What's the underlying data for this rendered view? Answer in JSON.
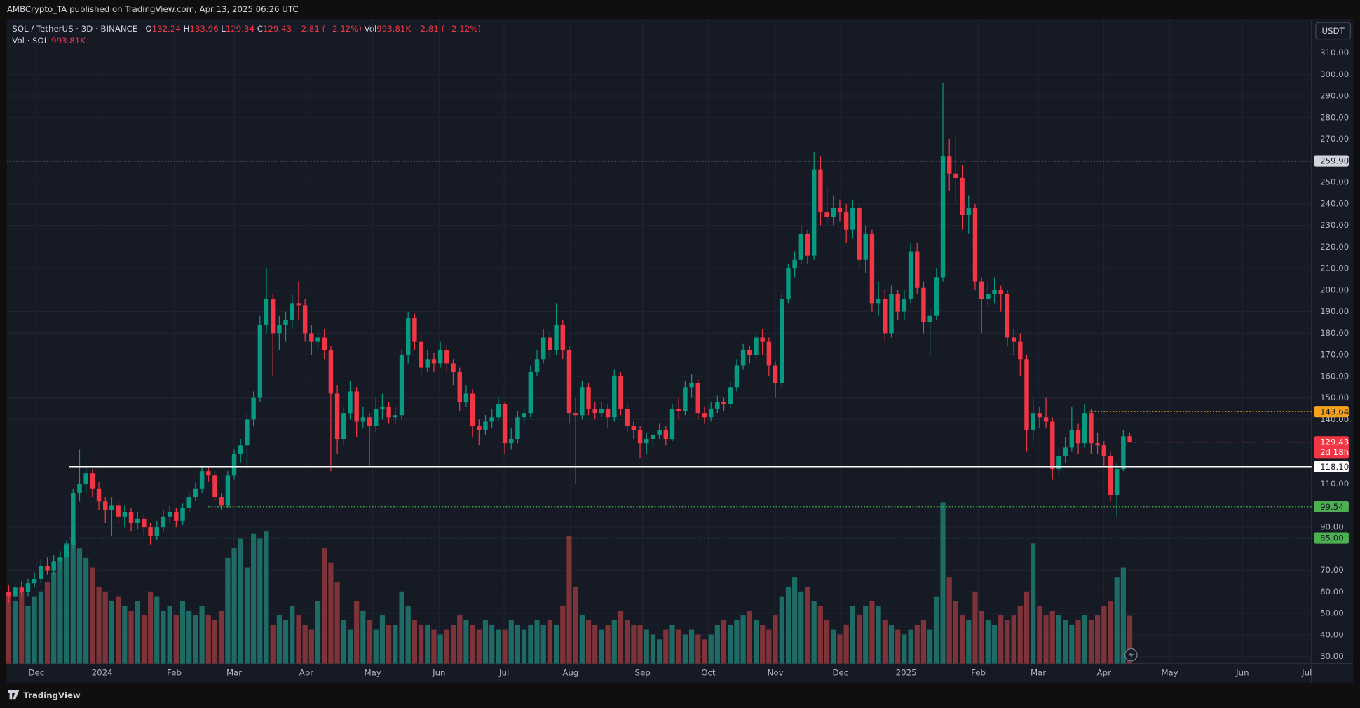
{
  "header": {
    "publisher": "AMBCrypto_TA published on TradingView.com, Apr 13, 2025 06:26 UTC"
  },
  "legend": {
    "symbol": "SOL / TetherUS · 3D · BINANCE",
    "ohlc": [
      {
        "k": "O",
        "v": "132.24"
      },
      {
        "k": "H",
        "v": "133.96"
      },
      {
        "k": "L",
        "v": "129.34"
      },
      {
        "k": "C",
        "v": "129.43"
      }
    ],
    "change": "−2.81 (−2.12%)",
    "vol_key": "Vol",
    "vol_value": "993.81K",
    "vol_change": "−2.81 (−2.12%)",
    "vol_line_key": "Vol · SOL",
    "vol_line_value": "993.81K"
  },
  "footer": {
    "brand": "TradingView"
  },
  "chart_data": {
    "type": "candlestick",
    "currency": "USDT",
    "xlim": [
      -0.27,
      202.2
    ],
    "xticks": [
      {
        "value": 4.3,
        "label": "Dec"
      },
      {
        "value": 14.5,
        "label": "2024"
      },
      {
        "value": 25.7,
        "label": "Feb"
      },
      {
        "value": 35.0,
        "label": "Mar"
      },
      {
        "value": 46.2,
        "label": "Apr"
      },
      {
        "value": 56.5,
        "label": "May"
      },
      {
        "value": 66.8,
        "label": "Jun"
      },
      {
        "value": 76.9,
        "label": "Jul"
      },
      {
        "value": 87.2,
        "label": "Aug"
      },
      {
        "value": 98.4,
        "label": "Sep"
      },
      {
        "value": 108.6,
        "label": "Oct"
      },
      {
        "value": 119.0,
        "label": "Nov"
      },
      {
        "value": 129.1,
        "label": "Dec"
      },
      {
        "value": 139.3,
        "label": "2025"
      },
      {
        "value": 150.5,
        "label": "Feb"
      },
      {
        "value": 159.8,
        "label": "Mar"
      },
      {
        "value": 170.0,
        "label": "Apr"
      },
      {
        "value": 180.2,
        "label": "May"
      },
      {
        "value": 191.5,
        "label": "Jun"
      },
      {
        "value": 201.5,
        "label": "Jul"
      }
    ],
    "ylim": [
      26.8,
      325.7
    ],
    "yticks": [
      {
        "value": 30,
        "label": "30.00"
      },
      {
        "value": 40,
        "label": "40.00"
      },
      {
        "value": 50,
        "label": "50.00"
      },
      {
        "value": 60,
        "label": "60.00"
      },
      {
        "value": 70,
        "label": "70.00"
      },
      {
        "value": 90,
        "label": "90.00"
      },
      {
        "value": 110,
        "label": "110.00"
      },
      {
        "value": 140,
        "label": "140.00"
      },
      {
        "value": 150,
        "label": "150.00"
      },
      {
        "value": 160,
        "label": "160.00"
      },
      {
        "value": 170,
        "label": "170.00"
      },
      {
        "value": 180,
        "label": "180.00"
      },
      {
        "value": 190,
        "label": "190.00"
      },
      {
        "value": 200,
        "label": "200.00"
      },
      {
        "value": 210,
        "label": "210.00"
      },
      {
        "value": 220,
        "label": "220.00"
      },
      {
        "value": 230,
        "label": "230.00"
      },
      {
        "value": 240,
        "label": "240.00"
      },
      {
        "value": 250,
        "label": "250.00"
      },
      {
        "value": 260,
        "label": "260.00"
      },
      {
        "value": 270,
        "label": "270.00"
      },
      {
        "value": 280,
        "label": "280.00"
      },
      {
        "value": 290,
        "label": "290.00"
      },
      {
        "value": 300,
        "label": "300.00"
      },
      {
        "value": 310,
        "label": "310.00"
      }
    ],
    "grid": true,
    "up_color": "#089981",
    "down_color": "#f23645",
    "vol_up_color": "#1d6b64",
    "vol_down_color": "#7e3338",
    "candles": [
      [
        60,
        63,
        55,
        58
      ],
      [
        58,
        64,
        56,
        62
      ],
      [
        62,
        65,
        58,
        60
      ],
      [
        60,
        66,
        58,
        64
      ],
      [
        64,
        69,
        62,
        66
      ],
      [
        66,
        75,
        64,
        72
      ],
      [
        72,
        76,
        68,
        70
      ],
      [
        70,
        77,
        68,
        74
      ],
      [
        74,
        79,
        72,
        76
      ],
      [
        76,
        84,
        74,
        82
      ],
      [
        82,
        108,
        80,
        106
      ],
      [
        106,
        126,
        102,
        110
      ],
      [
        110,
        118,
        106,
        115
      ],
      [
        115,
        117,
        104,
        108
      ],
      [
        108,
        111,
        98,
        102
      ],
      [
        102,
        104,
        92,
        98
      ],
      [
        98,
        104,
        86,
        100
      ],
      [
        100,
        102,
        92,
        95
      ],
      [
        95,
        100,
        90,
        97
      ],
      [
        97,
        99,
        88,
        92
      ],
      [
        92,
        97,
        89,
        94
      ],
      [
        94,
        96,
        86,
        90
      ],
      [
        90,
        92,
        82,
        86
      ],
      [
        86,
        93,
        84,
        90
      ],
      [
        90,
        98,
        88,
        95
      ],
      [
        95,
        100,
        92,
        97
      ],
      [
        97,
        99,
        90,
        93
      ],
      [
        93,
        101,
        91,
        99
      ],
      [
        99,
        106,
        97,
        104
      ],
      [
        104,
        111,
        102,
        108
      ],
      [
        108,
        118,
        106,
        116
      ],
      [
        116,
        118,
        111,
        114
      ],
      [
        114,
        116,
        102,
        104
      ],
      [
        104,
        106,
        98,
        100
      ],
      [
        100,
        116,
        99,
        114
      ],
      [
        114,
        126,
        112,
        124
      ],
      [
        124,
        131,
        120,
        128
      ],
      [
        128,
        143,
        117,
        140
      ],
      [
        140,
        153,
        137,
        150
      ],
      [
        150,
        188,
        148,
        184
      ],
      [
        184,
        210,
        180,
        196
      ],
      [
        196,
        198,
        160,
        180
      ],
      [
        180,
        188,
        172,
        184
      ],
      [
        184,
        190,
        176,
        186
      ],
      [
        186,
        198,
        182,
        194
      ],
      [
        194,
        204,
        186,
        193
      ],
      [
        193,
        196,
        176,
        180
      ],
      [
        180,
        184,
        170,
        176
      ],
      [
        176,
        182,
        172,
        178
      ],
      [
        178,
        182,
        168,
        172
      ],
      [
        172,
        174,
        116,
        152
      ],
      [
        152,
        156,
        124,
        131
      ],
      [
        131,
        146,
        128,
        143
      ],
      [
        143,
        158,
        140,
        153
      ],
      [
        153,
        155,
        132,
        139
      ],
      [
        139,
        146,
        136,
        141
      ],
      [
        141,
        143,
        118,
        137
      ],
      [
        137,
        150,
        134,
        145
      ],
      [
        145,
        152,
        140,
        146
      ],
      [
        146,
        148,
        138,
        141
      ],
      [
        141,
        146,
        138,
        142
      ],
      [
        142,
        172,
        140,
        170
      ],
      [
        170,
        190,
        166,
        187
      ],
      [
        187,
        189,
        172,
        176
      ],
      [
        176,
        180,
        160,
        164
      ],
      [
        164,
        172,
        162,
        168
      ],
      [
        168,
        171,
        162,
        166
      ],
      [
        166,
        176,
        164,
        172
      ],
      [
        172,
        174,
        162,
        166
      ],
      [
        166,
        168,
        156,
        162
      ],
      [
        162,
        164,
        144,
        148
      ],
      [
        148,
        156,
        146,
        152
      ],
      [
        152,
        154,
        132,
        137
      ],
      [
        137,
        140,
        128,
        135
      ],
      [
        135,
        142,
        133,
        139
      ],
      [
        139,
        145,
        136,
        141
      ],
      [
        141,
        150,
        139,
        147
      ],
      [
        147,
        148,
        124,
        129
      ],
      [
        129,
        136,
        126,
        131
      ],
      [
        131,
        144,
        129,
        141
      ],
      [
        141,
        146,
        138,
        143
      ],
      [
        143,
        165,
        141,
        162
      ],
      [
        162,
        172,
        160,
        168
      ],
      [
        168,
        182,
        166,
        178
      ],
      [
        178,
        181,
        168,
        172
      ],
      [
        172,
        194,
        170,
        184
      ],
      [
        184,
        186,
        168,
        172
      ],
      [
        172,
        174,
        138,
        143
      ],
      [
        143,
        150,
        110,
        142
      ],
      [
        142,
        158,
        140,
        155
      ],
      [
        155,
        157,
        142,
        145
      ],
      [
        145,
        148,
        140,
        143
      ],
      [
        143,
        148,
        141,
        145
      ],
      [
        145,
        147,
        136,
        141
      ],
      [
        141,
        163,
        139,
        160
      ],
      [
        160,
        162,
        142,
        145
      ],
      [
        145,
        147,
        134,
        137
      ],
      [
        137,
        139,
        131,
        135
      ],
      [
        135,
        137,
        122,
        129
      ],
      [
        129,
        134,
        124,
        131
      ],
      [
        131,
        134,
        126,
        133
      ],
      [
        133,
        138,
        131,
        135
      ],
      [
        135,
        137,
        128,
        131
      ],
      [
        131,
        147,
        130,
        145
      ],
      [
        145,
        150,
        140,
        144
      ],
      [
        144,
        158,
        142,
        155
      ],
      [
        155,
        161,
        150,
        157
      ],
      [
        157,
        159,
        140,
        143
      ],
      [
        143,
        146,
        138,
        141
      ],
      [
        141,
        148,
        139,
        145
      ],
      [
        145,
        151,
        143,
        148
      ],
      [
        148,
        150,
        144,
        147
      ],
      [
        147,
        158,
        145,
        155
      ],
      [
        155,
        168,
        153,
        165
      ],
      [
        165,
        175,
        163,
        172
      ],
      [
        172,
        174,
        166,
        170
      ],
      [
        170,
        181,
        168,
        178
      ],
      [
        178,
        182,
        170,
        176
      ],
      [
        176,
        178,
        160,
        165
      ],
      [
        165,
        167,
        150,
        157
      ],
      [
        157,
        198,
        155,
        196
      ],
      [
        196,
        212,
        194,
        210
      ],
      [
        210,
        218,
        206,
        214
      ],
      [
        214,
        230,
        212,
        226
      ],
      [
        226,
        228,
        212,
        216
      ],
      [
        216,
        264,
        214,
        256
      ],
      [
        256,
        262,
        230,
        236
      ],
      [
        236,
        248,
        230,
        234
      ],
      [
        234,
        244,
        230,
        238
      ],
      [
        238,
        242,
        232,
        236
      ],
      [
        236,
        240,
        222,
        228
      ],
      [
        228,
        242,
        224,
        238
      ],
      [
        238,
        240,
        210,
        214
      ],
      [
        214,
        230,
        208,
        226
      ],
      [
        226,
        228,
        190,
        194
      ],
      [
        194,
        204,
        188,
        196
      ],
      [
        196,
        200,
        176,
        180
      ],
      [
        180,
        202,
        178,
        198
      ],
      [
        198,
        200,
        186,
        190
      ],
      [
        190,
        200,
        186,
        196
      ],
      [
        196,
        222,
        194,
        218
      ],
      [
        218,
        222,
        198,
        201
      ],
      [
        201,
        204,
        180,
        185
      ],
      [
        185,
        192,
        170,
        188
      ],
      [
        188,
        210,
        186,
        206
      ],
      [
        206,
        296,
        204,
        262
      ],
      [
        262,
        270,
        246,
        254
      ],
      [
        254,
        272,
        240,
        252
      ],
      [
        252,
        258,
        228,
        235
      ],
      [
        235,
        244,
        226,
        238
      ],
      [
        238,
        240,
        200,
        204
      ],
      [
        204,
        206,
        180,
        196
      ],
      [
        196,
        204,
        192,
        198
      ],
      [
        198,
        206,
        194,
        200
      ],
      [
        200,
        202,
        190,
        198
      ],
      [
        198,
        200,
        174,
        178
      ],
      [
        178,
        182,
        170,
        176
      ],
      [
        176,
        180,
        160,
        168
      ],
      [
        168,
        170,
        125,
        135
      ],
      [
        135,
        150,
        130,
        143
      ],
      [
        143,
        146,
        136,
        141
      ],
      [
        141,
        150,
        136,
        139
      ],
      [
        139,
        141,
        112,
        117
      ],
      [
        117,
        126,
        114,
        123
      ],
      [
        123,
        132,
        120,
        127
      ],
      [
        127,
        146,
        125,
        135
      ],
      [
        135,
        138,
        124,
        129
      ],
      [
        129,
        147,
        127,
        143
      ],
      [
        143,
        145,
        124,
        129
      ],
      [
        129,
        134,
        124,
        128
      ],
      [
        128,
        130,
        118,
        123
      ],
      [
        123,
        125,
        102,
        105
      ],
      [
        105,
        120,
        95,
        117
      ],
      [
        117,
        135,
        116,
        132.24
      ],
      [
        132.24,
        133.96,
        129.34,
        129.43
      ]
    ],
    "volume": [
      1400,
      1300,
      1500,
      1200,
      1400,
      1500,
      1700,
      1900,
      2200,
      2500,
      2600,
      2400,
      2200,
      2000,
      1600,
      1500,
      1300,
      1400,
      1200,
      1100,
      1300,
      1000,
      1500,
      1400,
      1100,
      1200,
      1000,
      1300,
      1100,
      1000,
      1200,
      1000,
      900,
      1100,
      2200,
      2400,
      2600,
      2000,
      2700,
      2600,
      2750,
      800,
      1000,
      900,
      1200,
      1000,
      800,
      700,
      1300,
      2400,
      2100,
      1700,
      900,
      700,
      1300,
      1100,
      900,
      700,
      1000,
      800,
      800,
      1500,
      1200,
      900,
      800,
      800,
      700,
      600,
      700,
      800,
      1000,
      900,
      800,
      700,
      900,
      800,
      700,
      700,
      900,
      800,
      700,
      800,
      900,
      800,
      900,
      800,
      1200,
      2650,
      1600,
      1000,
      900,
      800,
      700,
      800,
      900,
      1100,
      900,
      800,
      800,
      700,
      600,
      500,
      700,
      800,
      700,
      600,
      700,
      600,
      500,
      600,
      800,
      900,
      800,
      900,
      1000,
      1100,
      900,
      800,
      700,
      1000,
      1400,
      1600,
      1800,
      1500,
      1600,
      1300,
      1200,
      900,
      700,
      600,
      800,
      1200,
      1000,
      1200,
      1300,
      1200,
      900,
      800,
      700,
      600,
      700,
      800,
      900,
      700,
      1400,
      3360,
      1800,
      1300,
      1000,
      900,
      1500,
      1100,
      900,
      800,
      1000,
      900,
      1000,
      1200,
      1500,
      2500,
      1200,
      1000,
      1100,
      1000,
      900,
      800,
      900,
      1000,
      900,
      1000,
      1200,
      1300,
      1800,
      2000,
      993.81
    ],
    "levels": [
      {
        "value": 259.9,
        "label": "259.90",
        "color": "#d1d4dc",
        "style": "dotted"
      },
      {
        "value": 143.64,
        "label": "143.64",
        "color": "#f7a21b",
        "style": "dotted"
      },
      {
        "value": 118.1,
        "label": "118.10",
        "color": "#ffffff",
        "style": "solid"
      },
      {
        "value": 99.54,
        "label": "99.54",
        "color": "#4caf50",
        "style": "dotted"
      },
      {
        "value": 85,
        "label": "85.00",
        "color": "#4caf50",
        "style": "dotted"
      }
    ],
    "last_price": {
      "value": 129.43,
      "label": "129.43",
      "countdown": "2d 18h",
      "color": "#f23645"
    }
  }
}
